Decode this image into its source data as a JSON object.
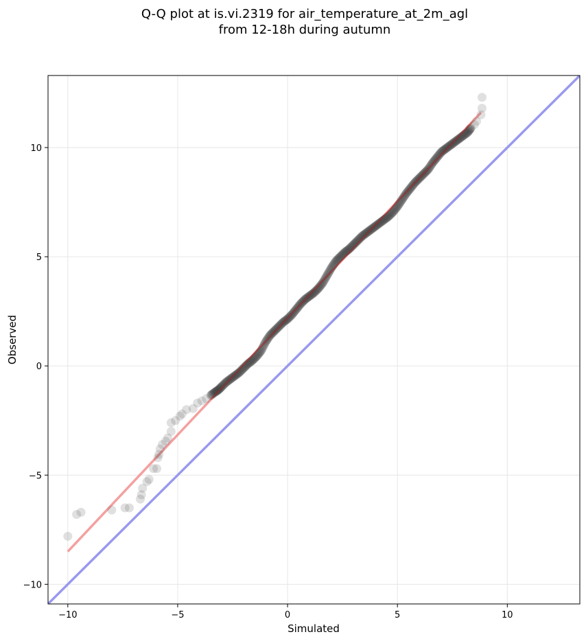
{
  "chart_data": {
    "type": "scatter",
    "title_line1": "Q-Q plot at is.vi.2319 for air_temperature_at_2m_agl",
    "title_line2": "from 12-18h during autumn",
    "xlabel": "Simulated",
    "ylabel": "Observed",
    "xlim": [
      -10.9,
      13.3
    ],
    "ylim": [
      -10.9,
      13.3
    ],
    "xticks": [
      -10,
      -5,
      0,
      5,
      10
    ],
    "yticks": [
      -10,
      -5,
      0,
      5,
      10
    ],
    "xtick_labels": [
      "−10",
      "−5",
      "0",
      "5",
      "10"
    ],
    "ytick_labels": [
      "−10",
      "−5",
      "0",
      "5",
      "10"
    ],
    "grid": true,
    "colors": {
      "points": "#404040",
      "fit_line": "#f08080",
      "fit_line_core": "#cc2222",
      "identity_line": "#9999ee"
    },
    "identity_line": {
      "x": [
        -10.9,
        13.3
      ],
      "y": [
        -10.9,
        13.3
      ]
    },
    "fit_line": {
      "x": [
        -10.0,
        8.8
      ],
      "y": [
        -8.5,
        11.6
      ]
    },
    "series": [
      {
        "values": [
          [
            -10.0,
            -7.8
          ],
          [
            -9.6,
            -6.8
          ],
          [
            -9.4,
            -6.7
          ],
          [
            -8.0,
            -6.6
          ],
          [
            -7.4,
            -6.5
          ],
          [
            -7.2,
            -6.5
          ],
          [
            -6.7,
            -6.1
          ],
          [
            -6.65,
            -5.9
          ],
          [
            -6.6,
            -5.6
          ],
          [
            -6.4,
            -5.3
          ],
          [
            -6.3,
            -5.2
          ],
          [
            -6.1,
            -4.7
          ],
          [
            -5.95,
            -4.7
          ],
          [
            -5.9,
            -4.2
          ],
          [
            -5.85,
            -4.05
          ],
          [
            -5.8,
            -3.8
          ],
          [
            -5.7,
            -3.6
          ],
          [
            -5.55,
            -3.45
          ],
          [
            -5.45,
            -3.3
          ],
          [
            -5.3,
            -3.0
          ],
          [
            -5.3,
            -2.6
          ],
          [
            -5.1,
            -2.5
          ],
          [
            -4.9,
            -2.3
          ],
          [
            -4.8,
            -2.2
          ],
          [
            -4.6,
            -2.0
          ],
          [
            -4.3,
            -1.95
          ],
          [
            -4.1,
            -1.7
          ],
          [
            -3.9,
            -1.6
          ],
          [
            -3.7,
            -1.5
          ],
          [
            -3.5,
            -1.35
          ],
          [
            -3.3,
            -1.2
          ],
          [
            -3.15,
            -1.1
          ],
          [
            -3.0,
            -0.95
          ],
          [
            -2.8,
            -0.75
          ],
          [
            -2.6,
            -0.6
          ],
          [
            -2.4,
            -0.45
          ],
          [
            -2.2,
            -0.3
          ],
          [
            -2.0,
            -0.1
          ],
          [
            -1.8,
            0.1
          ],
          [
            -1.6,
            0.25
          ],
          [
            -1.4,
            0.45
          ],
          [
            -1.2,
            0.7
          ],
          [
            -1.0,
            1.1
          ],
          [
            -0.8,
            1.4
          ],
          [
            -0.6,
            1.6
          ],
          [
            -0.4,
            1.8
          ],
          [
            -0.2,
            2.0
          ],
          [
            0.0,
            2.15
          ],
          [
            0.2,
            2.35
          ],
          [
            0.4,
            2.6
          ],
          [
            0.6,
            2.85
          ],
          [
            0.8,
            3.05
          ],
          [
            1.0,
            3.2
          ],
          [
            1.2,
            3.35
          ],
          [
            1.4,
            3.55
          ],
          [
            1.6,
            3.8
          ],
          [
            1.8,
            4.15
          ],
          [
            2.0,
            4.5
          ],
          [
            2.2,
            4.8
          ],
          [
            2.4,
            5.0
          ],
          [
            2.6,
            5.2
          ],
          [
            2.8,
            5.35
          ],
          [
            3.0,
            5.55
          ],
          [
            3.2,
            5.75
          ],
          [
            3.4,
            5.95
          ],
          [
            3.6,
            6.1
          ],
          [
            3.8,
            6.25
          ],
          [
            4.0,
            6.4
          ],
          [
            4.2,
            6.55
          ],
          [
            4.4,
            6.7
          ],
          [
            4.6,
            6.85
          ],
          [
            4.8,
            7.05
          ],
          [
            5.0,
            7.3
          ],
          [
            5.2,
            7.6
          ],
          [
            5.4,
            7.9
          ],
          [
            5.6,
            8.15
          ],
          [
            5.8,
            8.4
          ],
          [
            6.0,
            8.6
          ],
          [
            6.2,
            8.8
          ],
          [
            6.4,
            9.0
          ],
          [
            6.6,
            9.3
          ],
          [
            6.8,
            9.55
          ],
          [
            7.0,
            9.8
          ],
          [
            7.2,
            9.95
          ],
          [
            7.4,
            10.1
          ],
          [
            7.6,
            10.25
          ],
          [
            7.8,
            10.4
          ],
          [
            8.0,
            10.55
          ],
          [
            8.2,
            10.7
          ],
          [
            8.35,
            10.9
          ],
          [
            8.5,
            11.05
          ],
          [
            8.6,
            11.2
          ],
          [
            8.8,
            11.5
          ],
          [
            8.85,
            11.8
          ],
          [
            8.85,
            12.3
          ]
        ]
      }
    ]
  }
}
